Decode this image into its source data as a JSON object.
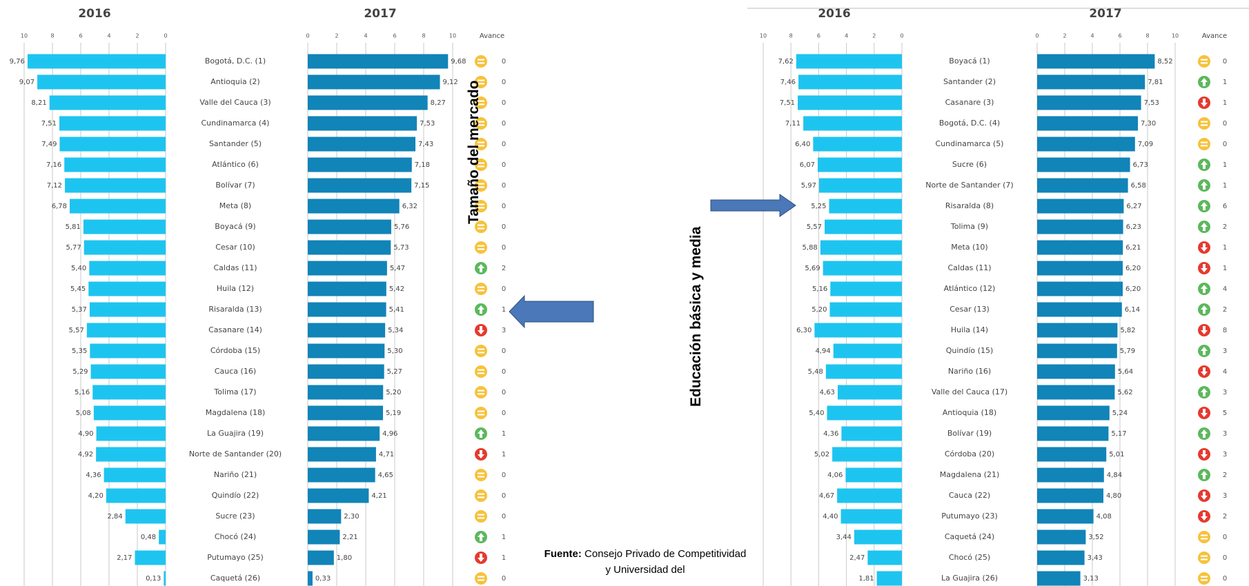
{
  "source_label": "Fuente:",
  "source_text": "Consejo Privado de Competitividad y Universidad del",
  "side_labels": {
    "left_chart": "Tamaño del mercado",
    "right_chart": "Educación básica y media"
  },
  "colors": {
    "bar_2016": "#1ec4f0",
    "bar_2017": "#1184b8",
    "neutral": "#f7c23b",
    "up": "#5cb85c",
    "down": "#e53a2e",
    "arrow": "#4a78b8",
    "grid": "#c9c9c9"
  },
  "chart_data": [
    {
      "type": "bar",
      "title": "Tamaño del mercado",
      "year_labels": [
        "2016",
        "2017"
      ],
      "avance_header": "Avance",
      "x_ticks_2016": [
        "10",
        "8",
        "6",
        "4",
        "2",
        "0"
      ],
      "x_ticks_2017": [
        "0",
        "2",
        "4",
        "6",
        "8",
        "10"
      ],
      "xlim": [
        0,
        10
      ],
      "grid": true,
      "categories": [
        "Bogotá, D.C. (1)",
        "Antioquia (2)",
        "Valle del Cauca (3)",
        "Cundinamarca (4)",
        "Santander (5)",
        "Atlántico (6)",
        "Bolívar (7)",
        "Meta (8)",
        "Boyacá (9)",
        "Cesar (10)",
        "Caldas (11)",
        "Huila (12)",
        "Risaralda (13)",
        "Casanare (14)",
        "Córdoba (15)",
        "Cauca (16)",
        "Tolima (17)",
        "Magdalena (18)",
        "La Guajira (19)",
        "Norte de Santander (20)",
        "Nariño (21)",
        "Quindío (22)",
        "Sucre (23)",
        "Chocó (24)",
        "Putumayo (25)",
        "Caquetá (26)"
      ],
      "series": [
        {
          "name": "2016",
          "values": [
            9.76,
            9.07,
            8.21,
            7.51,
            7.49,
            7.16,
            7.12,
            6.78,
            5.81,
            5.77,
            5.4,
            5.45,
            5.37,
            5.57,
            5.35,
            5.29,
            5.16,
            5.08,
            4.9,
            4.92,
            4.36,
            4.2,
            2.84,
            0.48,
            2.17,
            0.13
          ],
          "labels": [
            "9,76",
            "9,07",
            "8,21",
            "7,51",
            "7,49",
            "7,16",
            "7,12",
            "6,78",
            "5,81",
            "5,77",
            "5,40",
            "5,45",
            "5,37",
            "5,57",
            "5,35",
            "5,29",
            "5,16",
            "5,08",
            "4,90",
            "4,92",
            "4,36",
            "4,20",
            "2,84",
            "0,48",
            "2,17",
            "0,13"
          ]
        },
        {
          "name": "2017",
          "values": [
            9.68,
            9.12,
            8.27,
            7.53,
            7.43,
            7.18,
            7.15,
            6.32,
            5.76,
            5.73,
            5.47,
            5.42,
            5.41,
            5.34,
            5.3,
            5.27,
            5.2,
            5.19,
            4.96,
            4.71,
            4.65,
            4.21,
            2.3,
            2.21,
            1.8,
            0.33
          ],
          "labels": [
            "9,68",
            "9,12",
            "8,27",
            "7,53",
            "7,43",
            "7,18",
            "7,15",
            "6,32",
            "5,76",
            "5,73",
            "5,47",
            "5,42",
            "5,41",
            "5,34",
            "5,30",
            "5,27",
            "5,20",
            "5,19",
            "4,96",
            "4,71",
            "4,65",
            "4,21",
            "2,30",
            "2,21",
            "1,80",
            "0,33"
          ]
        }
      ],
      "avance": {
        "status": [
          "same",
          "same",
          "same",
          "same",
          "same",
          "same",
          "same",
          "same",
          "same",
          "same",
          "up",
          "same",
          "up",
          "down",
          "same",
          "same",
          "same",
          "same",
          "up",
          "down",
          "same",
          "same",
          "same",
          "up",
          "down",
          "same"
        ],
        "values": [
          "0",
          "0",
          "0",
          "0",
          "0",
          "0",
          "0",
          "0",
          "0",
          "0",
          "2",
          "0",
          "1",
          "3",
          "0",
          "0",
          "0",
          "0",
          "1",
          "1",
          "0",
          "0",
          "0",
          "1",
          "1",
          "0"
        ]
      }
    },
    {
      "type": "bar",
      "title": "Educación básica y media",
      "year_labels": [
        "2016",
        "2017"
      ],
      "avance_header": "Avance",
      "x_ticks_2016": [
        "10",
        "8",
        "6",
        "4",
        "2",
        "0"
      ],
      "x_ticks_2017": [
        "0",
        "2",
        "4",
        "6",
        "8",
        "10"
      ],
      "xlim": [
        0,
        10
      ],
      "grid": true,
      "categories": [
        "Boyacá (1)",
        "Santander (2)",
        "Casanare (3)",
        "Bogotá, D.C. (4)",
        "Cundinamarca (5)",
        "Sucre (6)",
        "Norte de Santander (7)",
        "Risaralda (8)",
        "Tolima (9)",
        "Meta (10)",
        "Caldas (11)",
        "Atlántico (12)",
        "Cesar (13)",
        "Huila (14)",
        "Quindío (15)",
        "Nariño (16)",
        "Valle del Cauca (17)",
        "Antioquia (18)",
        "Bolívar (19)",
        "Córdoba (20)",
        "Magdalena (21)",
        "Cauca (22)",
        "Putumayo (23)",
        "Caquetá (24)",
        "Chocó (25)",
        "La Guajira (26)"
      ],
      "series": [
        {
          "name": "2016",
          "values": [
            7.62,
            7.46,
            7.51,
            7.11,
            6.4,
            6.07,
            5.97,
            5.25,
            5.57,
            5.88,
            5.69,
            5.16,
            5.2,
            6.3,
            4.94,
            5.48,
            4.63,
            5.4,
            4.36,
            5.02,
            4.06,
            4.67,
            4.4,
            3.44,
            2.47,
            1.81
          ],
          "labels": [
            "7,62",
            "7,46",
            "7,51",
            "7,11",
            "6,40",
            "6,07",
            "5,97",
            "5,25",
            "5,57",
            "5,88",
            "5,69",
            "5,16",
            "5,20",
            "6,30",
            "4,94",
            "5,48",
            "4,63",
            "5,40",
            "4,36",
            "5,02",
            "4,06",
            "4,67",
            "4,40",
            "3,44",
            "2,47",
            "1,81"
          ]
        },
        {
          "name": "2017",
          "values": [
            8.52,
            7.81,
            7.53,
            7.3,
            7.09,
            6.73,
            6.58,
            6.27,
            6.23,
            6.21,
            6.2,
            6.2,
            6.14,
            5.82,
            5.79,
            5.64,
            5.62,
            5.24,
            5.17,
            5.01,
            4.84,
            4.8,
            4.08,
            3.52,
            3.43,
            3.13
          ],
          "labels": [
            "8,52",
            "7,81",
            "7,53",
            "7,30",
            "7,09",
            "6,73",
            "6,58",
            "6,27",
            "6,23",
            "6,21",
            "6,20",
            "6,20",
            "6,14",
            "5,82",
            "5,79",
            "5,64",
            "5,62",
            "5,24",
            "5,17",
            "5,01",
            "4,84",
            "4,80",
            "4,08",
            "3,52",
            "3,43",
            "3,13"
          ]
        }
      ],
      "avance": {
        "status": [
          "same",
          "up",
          "down",
          "same",
          "same",
          "up",
          "up",
          "up",
          "up",
          "down",
          "down",
          "up",
          "up",
          "down",
          "up",
          "down",
          "up",
          "down",
          "up",
          "down",
          "up",
          "down",
          "down",
          "same",
          "same",
          "same"
        ],
        "values": [
          "0",
          "1",
          "1",
          "0",
          "0",
          "1",
          "1",
          "6",
          "2",
          "1",
          "1",
          "4",
          "2",
          "8",
          "3",
          "4",
          "3",
          "5",
          "3",
          "3",
          "2",
          "3",
          "2",
          "0",
          "0",
          "0"
        ]
      }
    }
  ]
}
